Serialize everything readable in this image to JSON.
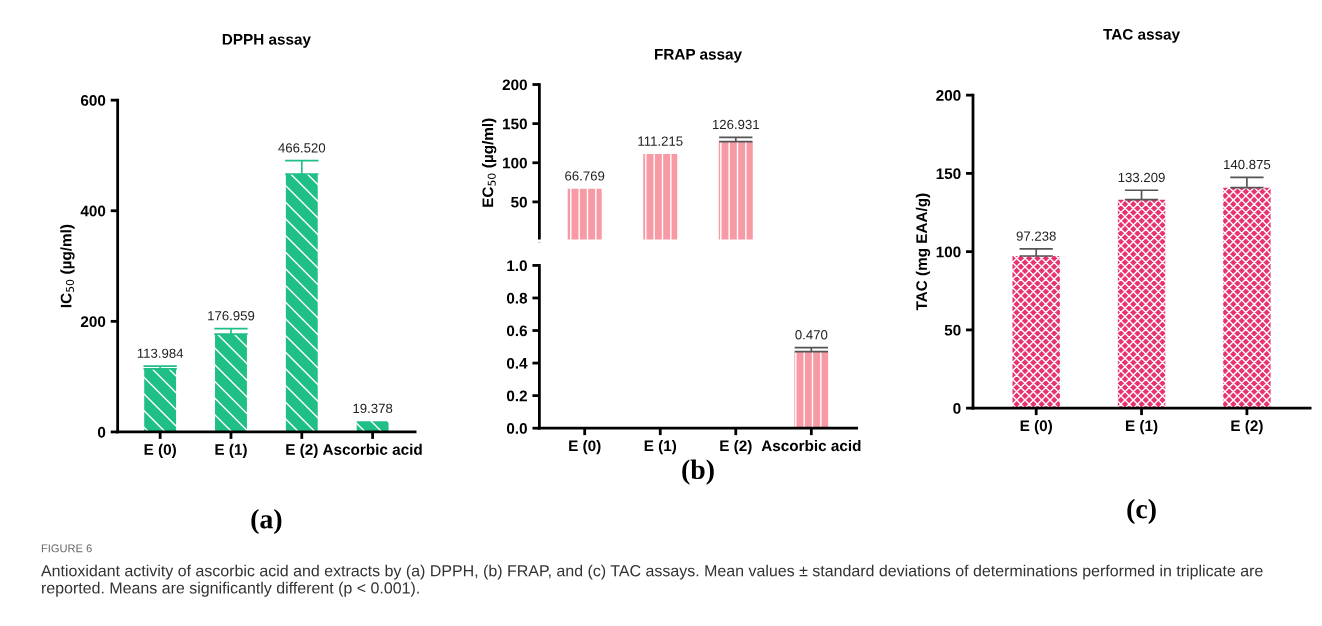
{
  "chart_data": [
    {
      "type": "bar",
      "title": "DPPH assay",
      "ylabel": "IC$_{50}$ (µg/ml)",
      "categories": [
        "E (0)",
        "E (1)",
        "E (2)",
        "Ascorbic acid"
      ],
      "values": [
        113.984,
        176.959,
        466.52,
        19.378
      ],
      "errors": [
        5,
        10,
        24,
        null
      ],
      "value_labels": [
        "113.984",
        "176.959",
        "466.520",
        "19.378"
      ],
      "color": "#1fbf86",
      "ylim": [
        0,
        600
      ],
      "yticks": [
        0,
        200,
        400,
        600
      ],
      "annotations": [
        "(a)"
      ]
    },
    {
      "type": "bar",
      "title": "FRAP assay",
      "ylabel": "EC$_{50}$ (µg/ml)",
      "categories": [
        null,
        null,
        null,
        null
      ],
      "values": [
        66.769,
        111.215,
        126.931,
        null
      ],
      "errors": [
        null,
        null,
        5.6,
        null
      ],
      "value_labels": [
        "66.769",
        "111.215",
        "126.931",
        null
      ],
      "color": "#f79aa5",
      "ylim": [
        0,
        200
      ],
      "yticks": [
        50,
        100,
        150,
        200
      ],
      "tick_labels": "y"
    },
    {
      "type": "bar",
      "categories": [
        "E (0)",
        "E (1)",
        "E (2)",
        "Ascorbic acid"
      ],
      "values": [
        null,
        null,
        null,
        0.47
      ],
      "errors": [
        null,
        null,
        null,
        0.025
      ],
      "value_labels": [
        null,
        null,
        null,
        "0.470"
      ],
      "color": "#f79aa5",
      "ylim": [
        0,
        1.0
      ],
      "yticks": [
        {
          "value": 0,
          "label": "0.0"
        },
        {
          "value": 0.2,
          "label": "0.2"
        },
        {
          "value": 0.4,
          "label": "0.4"
        },
        {
          "value": 0.6,
          "label": "0.6"
        },
        {
          "value": 0.8,
          "label": "0.8"
        },
        {
          "value": 1.0,
          "label": "1.0"
        }
      ],
      "annotations": [
        "(b)"
      ]
    },
    {
      "type": "bar",
      "title": "TAC assay",
      "ylabel": "TAC (mg EAA/g)",
      "categories": [
        "E (0)",
        "E (1)",
        "E (2)"
      ],
      "values": [
        97.238,
        133.209,
        140.875
      ],
      "errors": [
        4.5,
        6,
        6.6
      ],
      "value_labels": [
        "97.238",
        "133.209",
        "140.875"
      ],
      "color": "#e8336f",
      "ylim": [
        0,
        200
      ],
      "yticks": [
        0,
        50,
        100,
        150,
        200
      ],
      "annotations": [
        "(c)",
        "FIGURE 6",
        "Antioxidant activity of ascorbic acid and extracts by (a) DPPH, (b) FRAP, and (c) TAC assays. Mean values ± standard deviations of determinations performed in triplicate are reported. Means are significantly different (p < 0.001)."
      ]
    }
  ]
}
